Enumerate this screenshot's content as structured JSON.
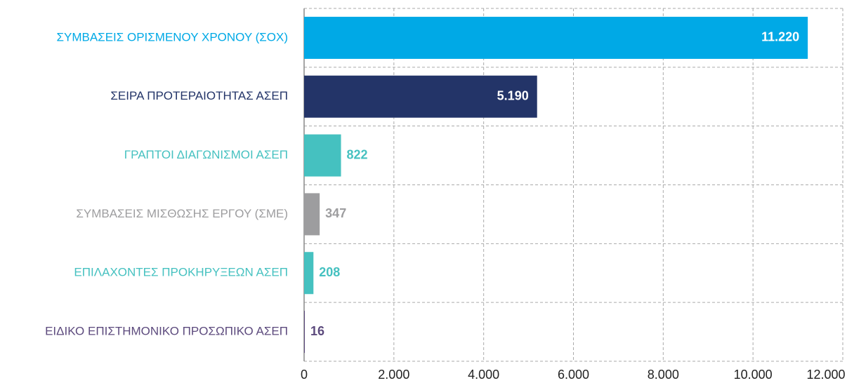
{
  "chart_data": {
    "type": "bar",
    "orientation": "horizontal",
    "categories": [
      "ΣΥΜΒΑΣΕΙΣ ΟΡΙΣΜΕΝΟΥ ΧΡΟΝΟΥ (ΣΟΧ)",
      "ΣΕΙΡΑ ΠΡΟΤΕΡΑΙΟΤΗΤΑΣ ΑΣΕΠ",
      "ΓΡΑΠΤΟΙ ΔΙΑΓΩΝΙΣΜΟΙ ΑΣΕΠ",
      "ΣΥΜΒΑΣΕΙΣ ΜΙΣΘΩΣΗΣ ΕΡΓΟΥ (ΣΜΕ)",
      "ΕΠΙΛΑΧΟΝΤΕΣ ΠΡΟΚΗΡΥΞΕΩΝ ΑΣΕΠ",
      "ΕΙΔΙΚΟ ΕΠΙΣΤΗΜΟΝΙΚΟ ΠΡΟΣΩΠΙΚΟ ΑΣΕΠ"
    ],
    "values": [
      11220,
      5190,
      822,
      347,
      208,
      16
    ],
    "value_labels": [
      "11.220",
      "5.190",
      "822",
      "347",
      "208",
      "16"
    ],
    "colors": [
      "#00a9e6",
      "#233468",
      "#45c1c0",
      "#9d9d9f",
      "#45c1c0",
      "#5c4a7d"
    ],
    "xlim": [
      0,
      12000
    ],
    "xticks": [
      0,
      {
        "value": 2000,
        "label": "2.000"
      },
      {
        "value": 4000,
        "label": "4.000"
      },
      {
        "value": 6000,
        "label": "6.000"
      },
      {
        "value": 8000,
        "label": "8.000"
      },
      {
        "value": 10000,
        "label": "10.000"
      },
      {
        "value": 12000,
        "label": "12.000"
      }
    ],
    "grid": true
  }
}
